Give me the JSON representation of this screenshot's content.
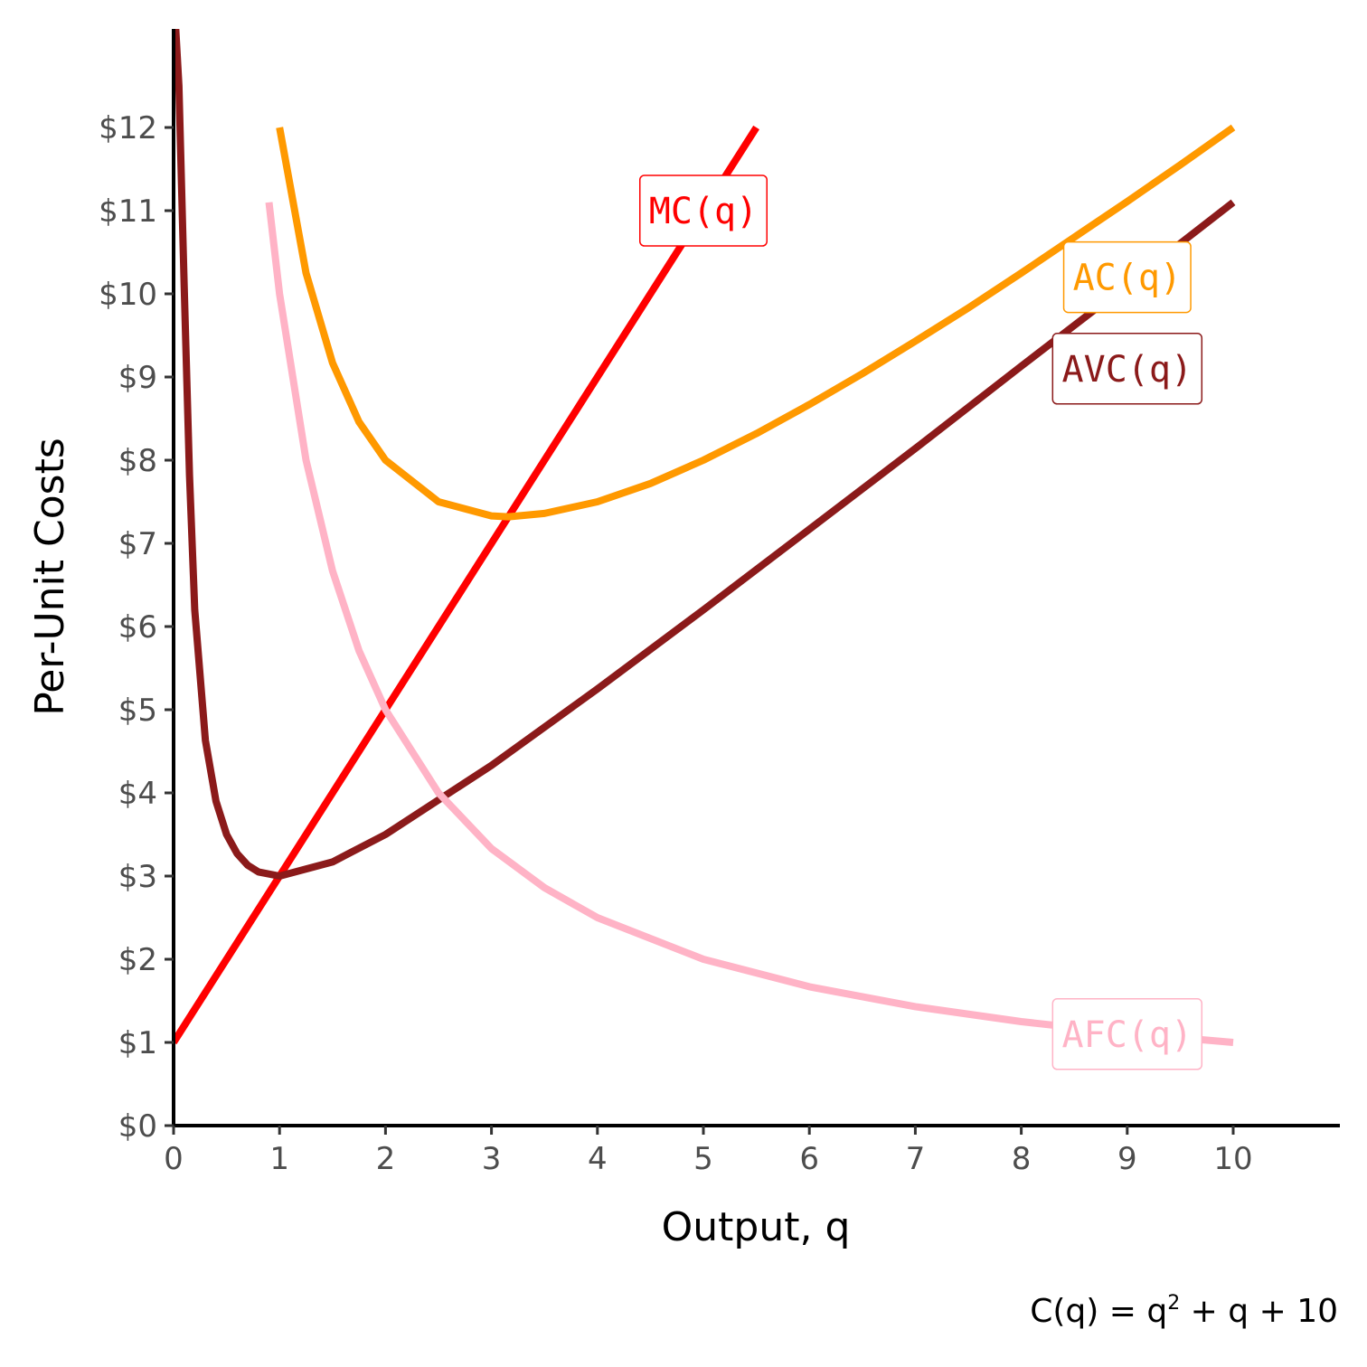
{
  "chart_data": {
    "type": "line",
    "title": "",
    "xlabel": "Output, q",
    "ylabel": "Per-Unit Costs",
    "xlim": [
      0,
      11
    ],
    "ylim": [
      0,
      13.2
    ],
    "x_ticks": [
      0,
      1,
      2,
      3,
      4,
      5,
      6,
      7,
      8,
      9,
      10
    ],
    "x_tick_labels": [
      "0",
      "1",
      "2",
      "3",
      "4",
      "5",
      "6",
      "7",
      "8",
      "9",
      "10"
    ],
    "y_ticks": [
      0,
      1,
      2,
      3,
      4,
      5,
      6,
      7,
      8,
      9,
      10,
      11,
      12
    ],
    "y_tick_labels": [
      "$0",
      "$1",
      "$2",
      "$3",
      "$4",
      "$5",
      "$6",
      "$7",
      "$8",
      "$9",
      "$10",
      "$11",
      "$12"
    ],
    "grid": false,
    "legend": "none (direct curve labels)",
    "series": [
      {
        "name": "MC(q)",
        "color": "#ff0000",
        "x": [
          0,
          0.5,
          1,
          1.5,
          2,
          2.5,
          3,
          3.5,
          4,
          4.5,
          5,
          5.5
        ],
        "y": [
          1,
          2,
          3,
          4,
          5,
          6,
          7,
          8,
          9,
          10,
          11,
          12
        ]
      },
      {
        "name": "AC(q)",
        "color": "#ff9900",
        "x": [
          1,
          1.25,
          1.5,
          1.75,
          2,
          2.5,
          3,
          3.16,
          3.5,
          4,
          4.5,
          5,
          5.5,
          6,
          6.5,
          7,
          7.5,
          8,
          8.5,
          9,
          9.5,
          10
        ],
        "y": [
          12,
          10.25,
          9.17,
          8.46,
          8,
          7.5,
          7.33,
          7.32,
          7.36,
          7.5,
          7.72,
          8,
          8.32,
          8.67,
          9.04,
          9.43,
          9.83,
          10.25,
          10.68,
          11.11,
          11.55,
          12
        ]
      },
      {
        "name": "AVC(q)",
        "color": "#8b1a1a",
        "x": [
          0.02,
          0.05,
          0.1,
          0.15,
          0.2,
          0.3,
          0.4,
          0.5,
          0.6,
          0.7,
          0.8,
          1,
          1.5,
          2,
          3,
          4,
          5,
          6,
          7,
          8,
          9,
          10
        ],
        "y": [
          13.2,
          12.5,
          10.1,
          7.82,
          6.2,
          4.63,
          3.9,
          3.5,
          3.27,
          3.13,
          3.05,
          3,
          3.17,
          3.5,
          4.33,
          5.25,
          6.2,
          7.17,
          8.14,
          9.13,
          10.11,
          11.1
        ]
      },
      {
        "name": "AFC(q)",
        "color": "#ffb3c6",
        "x": [
          0.9,
          1,
          1.25,
          1.5,
          1.75,
          2,
          2.5,
          3,
          3.5,
          4,
          5,
          6,
          7,
          8,
          9,
          10
        ],
        "y": [
          11.1,
          10,
          8,
          6.67,
          5.71,
          5,
          4,
          3.33,
          2.86,
          2.5,
          2,
          1.67,
          1.43,
          1.25,
          1.11,
          1
        ]
      }
    ],
    "labels": [
      {
        "text": "MC(q)",
        "series": "MC(q)",
        "x": 5,
        "y": 11
      },
      {
        "text": "AC(q)",
        "series": "AC(q)",
        "x": 9,
        "y": 10.2
      },
      {
        "text": "AVC(q)",
        "series": "AVC(q)",
        "x": 9,
        "y": 9.1
      },
      {
        "text": "AFC(q)",
        "series": "AFC(q)",
        "x": 9,
        "y": 1.1
      }
    ],
    "annotation": {
      "base": "C(q) = q",
      "superscript": "2",
      "tail": " + q + 10"
    }
  }
}
